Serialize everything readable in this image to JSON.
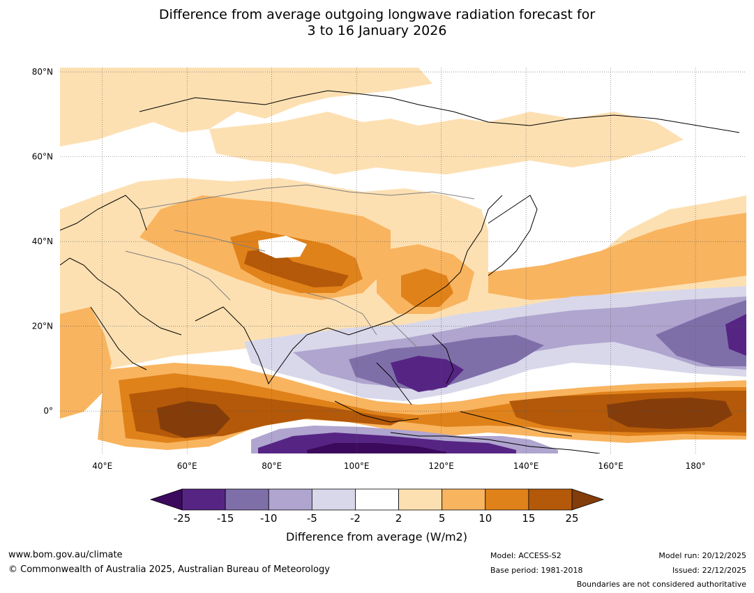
{
  "chart_data": {
    "type": "heatmap",
    "title_line1": "Difference from average outgoing longwave radiation forecast for",
    "title_line2": "3 to 16 January 2026",
    "x_range": [
      30,
      192
    ],
    "y_range": [
      -10,
      81
    ],
    "x_ticks": [
      {
        "value": 40,
        "label": "40°E"
      },
      {
        "value": 60,
        "label": "60°E"
      },
      {
        "value": 80,
        "label": "80°E"
      },
      {
        "value": 100,
        "label": "100°E"
      },
      {
        "value": 120,
        "label": "120°E"
      },
      {
        "value": 140,
        "label": "140°E"
      },
      {
        "value": 160,
        "label": "160°E"
      },
      {
        "value": 180,
        "label": "180°"
      }
    ],
    "y_ticks": [
      {
        "value": 80,
        "label": "80°N"
      },
      {
        "value": 60,
        "label": "60°N"
      },
      {
        "value": 40,
        "label": "40°N"
      },
      {
        "value": 20,
        "label": "20°N"
      },
      {
        "value": 0,
        "label": "0°"
      }
    ],
    "colorbar": {
      "label": "Difference from average (W/m2)",
      "levels": [
        "-25",
        "-15",
        "-10",
        "-5",
        "-2",
        "2",
        "5",
        "10",
        "15",
        "25"
      ],
      "colors": [
        "#562584",
        "#7f6fa9",
        "#afa5cf",
        "#d9d8ea",
        "#ffffff",
        "#fde0b2",
        "#f9b45f",
        "#e0821a",
        "#b35909"
      ],
      "under_color": "#3b0a5c",
      "over_color": "#843c0a"
    },
    "regions": [
      {
        "level": "2 to 5",
        "color": "#fde0b2",
        "lon": [
          30,
          192
        ],
        "lat": [
          20,
          60
        ]
      },
      {
        "level": "5 to 10",
        "color": "#f9b45f",
        "lon": [
          60,
          105
        ],
        "lat": [
          30,
          50
        ]
      },
      {
        "level": "10 to 15",
        "color": "#e0821a",
        "lon": [
          75,
          100
        ],
        "lat": [
          30,
          38
        ]
      },
      {
        "level": "-10 to -5",
        "color": "#afa5cf",
        "lon": [
          100,
          190
        ],
        "lat": [
          8,
          22
        ]
      },
      {
        "level": "-15 to -25",
        "color": "#562584",
        "lon": [
          105,
          125
        ],
        "lat": [
          5,
          12
        ]
      },
      {
        "level": "15 to 25",
        "color": "#b35909",
        "lon": [
          45,
          190
        ],
        "lat": [
          -8,
          2
        ]
      }
    ]
  },
  "footer": {
    "website": "www.bom.gov.au/climate",
    "copyright": "© Commonwealth of Australia 2025, Australian Bureau of Meteorology",
    "model": "Model: ACCESS-S2",
    "base_period": "Base period: 1981-2018",
    "model_run": "Model run: 20/12/2025",
    "issued": "Issued: 22/12/2025",
    "disclaimer": "Boundaries are not considered authoritative"
  }
}
